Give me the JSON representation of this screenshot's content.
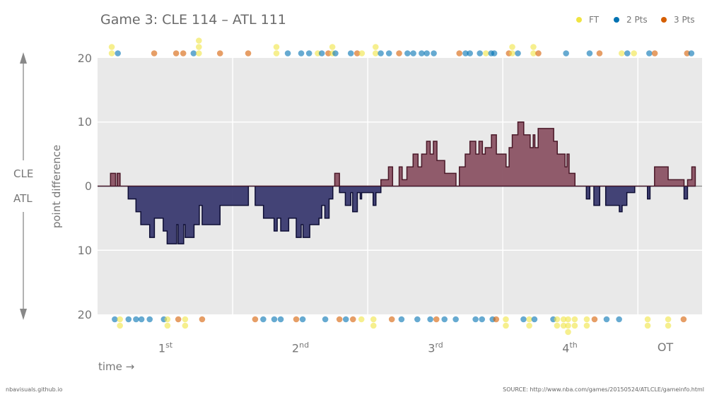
{
  "title": "Game 3: CLE 114  –  ATL 111",
  "legend": [
    {
      "label": "FT",
      "color": "#f0e442"
    },
    {
      "label": "2 Pts",
      "color": "#0072b2"
    },
    {
      "label": "3 Pts",
      "color": "#d55e00"
    }
  ],
  "axis": {
    "y_label": "point difference",
    "top_team": "CLE",
    "bottom_team": "ATL",
    "x_label": "time →",
    "y_ticks": [
      "20",
      "10",
      "0",
      "10",
      "20"
    ],
    "periods": [
      {
        "label": "1",
        "sup": "st"
      },
      {
        "label": "2",
        "sup": "nd"
      },
      {
        "label": "3",
        "sup": "rd"
      },
      {
        "label": "4",
        "sup": "th"
      },
      {
        "label": "OT",
        "sup": ""
      }
    ]
  },
  "footer": {
    "left": "nbavisuals.github.io",
    "right": "SOURCE: http://www.nba.com/games/20150524/ATLCLE/gameinfo.html"
  },
  "colors": {
    "cle_lead": "#8b5364",
    "atl_lead": "#3a3a70",
    "background": "#e9e9e9"
  },
  "chart_data": {
    "type": "area",
    "step": true,
    "xlim": [
      0,
      53.7
    ],
    "ylim": [
      -20,
      20
    ],
    "x_unit": "minutes",
    "period_boundaries": [
      12,
      24,
      36,
      48
    ],
    "grid": true,
    "legend_placement": "top-right",
    "score_diff_steps": [
      [
        0,
        0
      ],
      [
        1.15,
        2
      ],
      [
        1.6,
        0
      ],
      [
        1.74,
        2
      ],
      [
        2.0,
        0
      ],
      [
        2.72,
        -2
      ],
      [
        3.41,
        -4
      ],
      [
        3.84,
        -6
      ],
      [
        4.63,
        -8
      ],
      [
        5.05,
        -5
      ],
      [
        5.83,
        -7
      ],
      [
        6.18,
        -9
      ],
      [
        7.03,
        -6
      ],
      [
        7.15,
        -9
      ],
      [
        7.65,
        -6
      ],
      [
        7.78,
        -8
      ],
      [
        8.57,
        -6
      ],
      [
        9.04,
        -3
      ],
      [
        9.29,
        -6
      ],
      [
        10.88,
        -3
      ],
      [
        13.4,
        0
      ],
      [
        14.0,
        -3
      ],
      [
        14.74,
        -5
      ],
      [
        15.68,
        -7
      ],
      [
        15.96,
        -5
      ],
      [
        16.27,
        -7
      ],
      [
        16.98,
        -5
      ],
      [
        17.65,
        -8
      ],
      [
        18.09,
        -6
      ],
      [
        18.25,
        -8
      ],
      [
        18.85,
        -6
      ],
      [
        19.67,
        -5
      ],
      [
        19.92,
        -3
      ],
      [
        20.19,
        -5
      ],
      [
        20.57,
        -2
      ],
      [
        20.9,
        0
      ],
      [
        21.07,
        2
      ],
      [
        21.49,
        -1
      ],
      [
        22.01,
        -3
      ],
      [
        22.5,
        -1
      ],
      [
        22.66,
        -4
      ],
      [
        23.08,
        -1
      ],
      [
        23.33,
        -2
      ],
      [
        23.46,
        -1
      ],
      [
        24.48,
        -3
      ],
      [
        24.73,
        -1
      ],
      [
        25.17,
        1
      ],
      [
        25.84,
        3
      ],
      [
        26.21,
        0
      ],
      [
        26.79,
        3
      ],
      [
        27.06,
        1
      ],
      [
        27.48,
        3
      ],
      [
        28.03,
        5
      ],
      [
        28.47,
        3
      ],
      [
        28.79,
        5
      ],
      [
        29.23,
        7
      ],
      [
        29.55,
        5
      ],
      [
        29.83,
        7
      ],
      [
        30.15,
        4
      ],
      [
        30.84,
        2
      ],
      [
        31.84,
        0
      ],
      [
        32.14,
        3
      ],
      [
        32.66,
        5
      ],
      [
        33.08,
        7
      ],
      [
        33.6,
        5
      ],
      [
        33.88,
        7
      ],
      [
        34.19,
        5
      ],
      [
        34.44,
        6
      ],
      [
        34.99,
        8
      ],
      [
        35.43,
        5
      ],
      [
        36.29,
        3
      ],
      [
        36.56,
        6
      ],
      [
        36.84,
        8
      ],
      [
        37.34,
        10
      ],
      [
        37.86,
        8
      ],
      [
        38.43,
        6
      ],
      [
        38.7,
        8
      ],
      [
        38.85,
        6
      ],
      [
        39.14,
        9
      ],
      [
        40.52,
        7
      ],
      [
        40.84,
        5
      ],
      [
        41.53,
        3
      ],
      [
        41.7,
        5
      ],
      [
        41.89,
        2
      ],
      [
        42.41,
        0
      ],
      [
        43.42,
        -2
      ],
      [
        43.73,
        0
      ],
      [
        44.09,
        -3
      ],
      [
        44.61,
        0
      ],
      [
        45.14,
        -3
      ],
      [
        46.35,
        -4
      ],
      [
        46.6,
        -3
      ],
      [
        47.02,
        -1
      ],
      [
        47.72,
        0
      ],
      [
        48.85,
        -2
      ],
      [
        49.08,
        0
      ],
      [
        49.48,
        3
      ],
      [
        50.69,
        1
      ],
      [
        52.1,
        -2
      ],
      [
        52.41,
        1
      ],
      [
        52.79,
        3
      ],
      [
        53.1,
        3
      ]
    ],
    "scoring": {
      "CLE": [
        [
          1.26,
          "FT",
          2
        ],
        [
          1.8,
          "2",
          1
        ],
        [
          5.03,
          "3",
          1
        ],
        [
          6.98,
          "3",
          1
        ],
        [
          7.61,
          "3",
          1
        ],
        [
          8.53,
          "2",
          1
        ],
        [
          9.0,
          "FT",
          3
        ],
        [
          10.88,
          "3",
          1
        ],
        [
          13.38,
          "3",
          1
        ],
        [
          15.89,
          "FT",
          2
        ],
        [
          16.9,
          "2",
          1
        ],
        [
          18.09,
          "2",
          1
        ],
        [
          18.79,
          "2",
          1
        ],
        [
          19.56,
          "FT",
          1
        ],
        [
          19.92,
          "2",
          1
        ],
        [
          20.5,
          "3",
          1
        ],
        [
          20.86,
          "FT",
          2
        ],
        [
          21.13,
          "2",
          1
        ],
        [
          22.5,
          "2",
          1
        ],
        [
          23.06,
          "3",
          1
        ],
        [
          23.48,
          "FT",
          1
        ],
        [
          24.7,
          "FT",
          2
        ],
        [
          25.16,
          "2",
          1
        ],
        [
          25.89,
          "2",
          1
        ],
        [
          26.79,
          "3",
          1
        ],
        [
          27.53,
          "2",
          1
        ],
        [
          28.05,
          "2",
          1
        ],
        [
          28.79,
          "2",
          1
        ],
        [
          29.25,
          "2",
          1
        ],
        [
          29.87,
          "2",
          1
        ],
        [
          32.14,
          "3",
          1
        ],
        [
          32.69,
          "2",
          1
        ],
        [
          33.08,
          "2",
          1
        ],
        [
          33.96,
          "2",
          1
        ],
        [
          34.5,
          "FT",
          1
        ],
        [
          34.97,
          "2",
          1
        ],
        [
          35.24,
          "2",
          1
        ],
        [
          36.54,
          "3",
          1
        ],
        [
          36.84,
          "FT",
          2
        ],
        [
          37.34,
          "2",
          1
        ],
        [
          38.72,
          "FT",
          2
        ],
        [
          39.16,
          "3",
          1
        ],
        [
          41.62,
          "2",
          1
        ],
        [
          43.71,
          "2",
          1
        ],
        [
          44.59,
          "3",
          1
        ],
        [
          46.56,
          "FT",
          1
        ],
        [
          47.06,
          "2",
          1
        ],
        [
          47.65,
          "FT",
          1
        ],
        [
          49.01,
          "2",
          1
        ],
        [
          49.5,
          "3",
          1
        ],
        [
          52.37,
          "3",
          1
        ],
        [
          52.75,
          "2",
          1
        ]
      ],
      "ATL": [
        [
          1.53,
          "2",
          1
        ],
        [
          1.99,
          "FT",
          2
        ],
        [
          2.75,
          "2",
          1
        ],
        [
          3.42,
          "2",
          1
        ],
        [
          3.9,
          "2",
          1
        ],
        [
          4.63,
          "2",
          1
        ],
        [
          5.89,
          "2",
          1
        ],
        [
          6.21,
          "FT",
          2
        ],
        [
          7.17,
          "3",
          1
        ],
        [
          7.78,
          "FT",
          2
        ],
        [
          9.29,
          "3",
          1
        ],
        [
          14.0,
          "3",
          1
        ],
        [
          14.72,
          "2",
          1
        ],
        [
          15.7,
          "2",
          1
        ],
        [
          16.27,
          "2",
          1
        ],
        [
          17.65,
          "3",
          1
        ],
        [
          18.22,
          "2",
          1
        ],
        [
          20.23,
          "2",
          1
        ],
        [
          21.49,
          "3",
          1
        ],
        [
          22.06,
          "2",
          1
        ],
        [
          22.69,
          "3",
          1
        ],
        [
          23.44,
          "FT",
          1
        ],
        [
          24.51,
          "FT",
          2
        ],
        [
          26.14,
          "3",
          1
        ],
        [
          27.0,
          "2",
          1
        ],
        [
          28.41,
          "2",
          1
        ],
        [
          29.56,
          "2",
          1
        ],
        [
          30.1,
          "3",
          1
        ],
        [
          30.82,
          "2",
          1
        ],
        [
          31.82,
          "2",
          1
        ],
        [
          33.58,
          "2",
          1
        ],
        [
          34.15,
          "2",
          1
        ],
        [
          35.09,
          "2",
          1
        ],
        [
          35.41,
          "3",
          1
        ],
        [
          36.27,
          "FT",
          2
        ],
        [
          37.84,
          "2",
          1
        ],
        [
          38.35,
          "FT",
          2
        ],
        [
          38.81,
          "2",
          1
        ],
        [
          40.48,
          "2",
          1
        ],
        [
          40.82,
          "FT",
          2
        ],
        [
          41.4,
          "FT",
          2
        ],
        [
          41.8,
          "FT",
          3
        ],
        [
          42.39,
          "FT",
          2
        ],
        [
          43.46,
          "FT",
          2
        ],
        [
          44.15,
          "3",
          1
        ],
        [
          45.22,
          "2",
          1
        ],
        [
          46.33,
          "2",
          1
        ],
        [
          48.87,
          "FT",
          2
        ],
        [
          50.69,
          "FT",
          2
        ],
        [
          52.06,
          "3",
          1
        ]
      ]
    }
  }
}
